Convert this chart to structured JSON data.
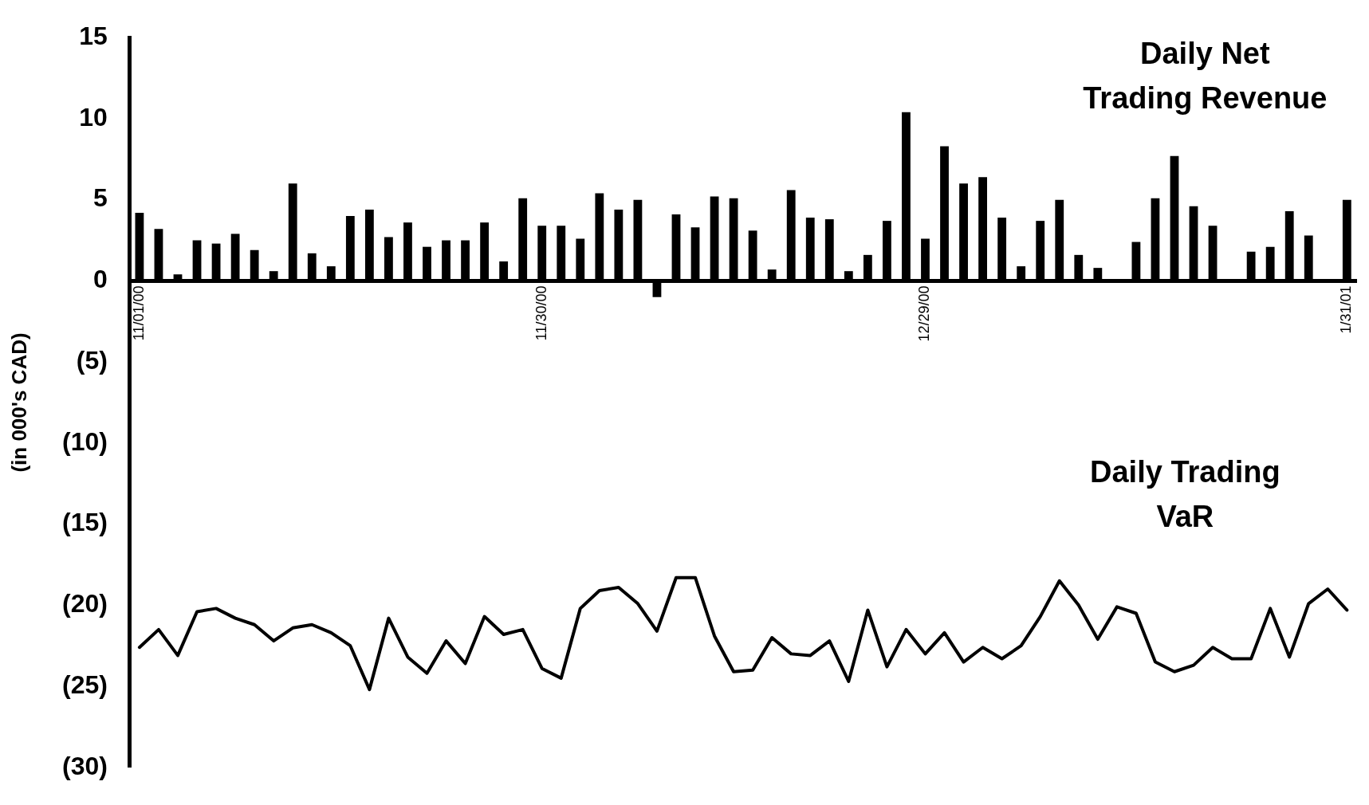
{
  "chart_data": {
    "type": "bar",
    "ylabel": "(in 000's CAD)",
    "categories": [
      "11/01/00",
      null,
      null,
      null,
      null,
      null,
      null,
      null,
      null,
      null,
      null,
      null,
      null,
      null,
      null,
      null,
      null,
      null,
      null,
      null,
      null,
      "11/30/00",
      null,
      null,
      null,
      null,
      null,
      null,
      null,
      null,
      null,
      null,
      null,
      null,
      null,
      null,
      null,
      null,
      null,
      null,
      null,
      "12/29/00",
      null,
      null,
      null,
      null,
      null,
      null,
      null,
      null,
      null,
      null,
      null,
      null,
      null,
      null,
      null,
      null,
      null,
      null,
      null,
      null,
      null,
      "1/31/01"
    ],
    "series": [
      {
        "name": "Daily Net Trading Revenue",
        "color": "#000000",
        "values": [
          4.2,
          3.2,
          0.4,
          2.5,
          2.3,
          2.9,
          1.9,
          0.6,
          6.0,
          1.7,
          0.9,
          4.0,
          4.4,
          2.7,
          3.6,
          2.1,
          2.5,
          2.5,
          3.6,
          1.2,
          5.1,
          3.4,
          3.4,
          2.6,
          5.4,
          4.4,
          5.0,
          -1.0,
          4.1,
          3.3,
          5.2,
          5.1,
          3.1,
          0.7,
          5.6,
          3.9,
          3.8,
          0.6,
          1.6,
          3.7,
          10.4,
          2.6,
          8.3,
          6.0,
          6.4,
          3.9,
          0.9,
          3.7,
          5.0,
          1.6,
          0.8,
          null,
          2.4,
          5.1,
          7.7,
          4.6,
          3.4,
          null,
          1.8,
          2.1,
          4.3,
          2.8,
          null,
          5.0
        ]
      },
      {
        "name": "Daily Trading VaR",
        "type": "line",
        "color": "#000000",
        "values": [
          -22.6,
          -21.5,
          -23.1,
          -20.4,
          -20.2,
          -20.8,
          -21.2,
          -22.2,
          -21.4,
          -21.2,
          -21.7,
          -22.5,
          -25.2,
          -20.8,
          -23.2,
          -24.2,
          -22.2,
          -23.6,
          -20.7,
          -21.8,
          -21.5,
          -23.9,
          -24.5,
          -20.2,
          -19.1,
          -18.9,
          -19.9,
          -21.6,
          -18.3,
          -18.3,
          -21.9,
          -24.1,
          -24.0,
          -22.0,
          -23.0,
          -23.1,
          -22.2,
          -24.7,
          -20.3,
          -23.8,
          -21.5,
          -23.0,
          -21.7,
          -23.5,
          -22.6,
          -23.3,
          -22.5,
          -20.7,
          -18.5,
          -20.0,
          -22.1,
          -20.1,
          -20.5,
          -23.5,
          -24.1,
          -23.7,
          -22.6,
          -23.3,
          -23.3,
          -20.2,
          -23.2,
          -19.9,
          -19.0,
          -20.3
        ]
      }
    ],
    "ylim": [
      -30,
      15
    ],
    "yticks": [
      15,
      10,
      5,
      0,
      {
        "value": -5,
        "label": "(5)"
      },
      {
        "value": -10,
        "label": "(10)"
      },
      {
        "value": -15,
        "label": "(15)"
      },
      {
        "value": -20,
        "label": "(20)"
      },
      {
        "value": -25,
        "label": "(25)"
      },
      {
        "value": -30,
        "label": "(30)"
      }
    ],
    "grid": false,
    "legend": false,
    "marker": "none",
    "line_style": "solid"
  }
}
